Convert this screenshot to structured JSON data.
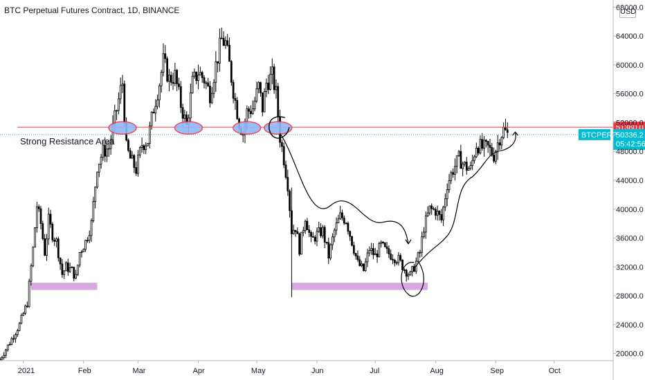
{
  "header": {
    "title": "BTC Perpetual Futures Contract, 1D, BINANCE",
    "currency": "USD"
  },
  "chart_data": {
    "type": "candlestick",
    "yticks": [
      20000,
      24000,
      28000,
      32000,
      36000,
      40000,
      44000,
      48000,
      52000,
      56000,
      60000,
      64000,
      68000
    ],
    "ytick_labels": [
      "20000.0",
      "24000.0",
      "28000.0",
      "32000.0",
      "36000.0",
      "40000.0",
      "44000.0",
      "48000.0",
      "52000.0",
      "56000.0",
      "60000.0",
      "64000.0",
      "68000.0"
    ],
    "ylim": [
      19000,
      69000
    ],
    "xticks": [
      "2021",
      "Feb",
      "Mar",
      "Apr",
      "May",
      "Jun",
      "Jul",
      "Aug",
      "Sep",
      "Oct"
    ],
    "xtick_dates": [
      "2021-01-01",
      "2021-02-01",
      "2021-03-01",
      "2021-04-01",
      "2021-05-01",
      "2021-06-01",
      "2021-07-01",
      "2021-08-01",
      "2021-09-01",
      "2021-10-01"
    ],
    "xlim": [
      "2020-12-20",
      "2021-10-31"
    ],
    "last_date": "2021-09-07",
    "colors": {
      "up": "#26a69a",
      "down": "#ef5350",
      "candle": "#000000",
      "resistance": "#f23645",
      "support_zone": "#ce93d8",
      "price_line": "#00bcd4",
      "oval_fill": "#90b8f8"
    },
    "resistance_level": 51360,
    "resistance_label": "51360.0",
    "current_price_label": "50336.2",
    "current_price": 50336.2,
    "symbol_label": "BTCPERP",
    "countdown_label": "05:42:56",
    "annotation_text": "Strong Resistance Area",
    "support_zones": [
      {
        "from": "2021-01-05",
        "to": "2021-02-08",
        "low": 28800,
        "high": 29800
      },
      {
        "from": "2021-05-19",
        "to": "2021-07-28",
        "low": 28800,
        "high": 29800
      }
    ],
    "ovals": [
      "2021-02-21",
      "2021-03-27",
      "2021-04-26",
      "2021-05-12"
    ],
    "series_close": [
      [
        "2020-12-20",
        19200
      ],
      [
        "2020-12-25",
        21500
      ],
      [
        "2020-12-30",
        24000
      ],
      [
        "2021-01-03",
        27000
      ],
      [
        "2021-01-06",
        34500
      ],
      [
        "2021-01-08",
        40500
      ],
      [
        "2021-01-10",
        38000
      ],
      [
        "2021-01-12",
        34000
      ],
      [
        "2021-01-14",
        38500
      ],
      [
        "2021-01-16",
        36500
      ],
      [
        "2021-01-18",
        35500
      ],
      [
        "2021-01-21",
        31000
      ],
      [
        "2021-01-23",
        32000
      ],
      [
        "2021-01-26",
        31500
      ],
      [
        "2021-01-28",
        30500
      ],
      [
        "2021-01-30",
        34000
      ],
      [
        "2021-02-02",
        35500
      ],
      [
        "2021-02-05",
        38000
      ],
      [
        "2021-02-08",
        46000
      ],
      [
        "2021-02-11",
        48000
      ],
      [
        "2021-02-14",
        48500
      ],
      [
        "2021-02-17",
        52500
      ],
      [
        "2021-02-20",
        56500
      ],
      [
        "2021-02-21",
        57500
      ],
      [
        "2021-02-23",
        48500
      ],
      [
        "2021-02-25",
        47000
      ],
      [
        "2021-02-28",
        45500
      ],
      [
        "2021-03-03",
        49000
      ],
      [
        "2021-03-06",
        49500
      ],
      [
        "2021-03-09",
        54000
      ],
      [
        "2021-03-12",
        57500
      ],
      [
        "2021-03-14",
        60500
      ],
      [
        "2021-03-17",
        58000
      ],
      [
        "2021-03-20",
        58500
      ],
      [
        "2021-03-23",
        54500
      ],
      [
        "2021-03-26",
        51500
      ],
      [
        "2021-03-29",
        57500
      ],
      [
        "2021-04-01",
        59000
      ],
      [
        "2021-04-04",
        58000
      ],
      [
        "2021-04-07",
        56000
      ],
      [
        "2021-04-10",
        60000
      ],
      [
        "2021-04-13",
        63500
      ],
      [
        "2021-04-15",
        63000
      ],
      [
        "2021-04-17",
        60000
      ],
      [
        "2021-04-19",
        56500
      ],
      [
        "2021-04-22",
        52000
      ],
      [
        "2021-04-24",
        50500
      ],
      [
        "2021-04-26",
        53500
      ],
      [
        "2021-04-29",
        54000
      ],
      [
        "2021-05-02",
        57000
      ],
      [
        "2021-05-04",
        54000
      ],
      [
        "2021-05-06",
        57500
      ],
      [
        "2021-05-09",
        58500
      ],
      [
        "2021-05-11",
        56000
      ],
      [
        "2021-05-13",
        50000
      ],
      [
        "2021-05-15",
        47000
      ],
      [
        "2021-05-17",
        43500
      ],
      [
        "2021-05-19",
        37000
      ],
      [
        "2021-05-21",
        37500
      ],
      [
        "2021-05-23",
        34500
      ],
      [
        "2021-05-26",
        39000
      ],
      [
        "2021-05-29",
        35500
      ],
      [
        "2021-06-01",
        36500
      ],
      [
        "2021-06-04",
        37000
      ],
      [
        "2021-06-07",
        33500
      ],
      [
        "2021-06-10",
        37000
      ],
      [
        "2021-06-13",
        39000
      ],
      [
        "2021-06-16",
        38500
      ],
      [
        "2021-06-19",
        35500
      ],
      [
        "2021-06-22",
        32500
      ],
      [
        "2021-06-25",
        31500
      ],
      [
        "2021-06-28",
        34500
      ],
      [
        "2021-07-01",
        33500
      ],
      [
        "2021-07-04",
        35000
      ],
      [
        "2021-07-07",
        34000
      ],
      [
        "2021-07-10",
        33500
      ],
      [
        "2021-07-13",
        33000
      ],
      [
        "2021-07-16",
        31700
      ],
      [
        "2021-07-19",
        30800
      ],
      [
        "2021-07-21",
        32000
      ],
      [
        "2021-07-24",
        34000
      ],
      [
        "2021-07-26",
        37500
      ],
      [
        "2021-07-29",
        40000
      ],
      [
        "2021-08-01",
        39800
      ],
      [
        "2021-08-04",
        38500
      ],
      [
        "2021-08-07",
        43500
      ],
      [
        "2021-08-10",
        45500
      ],
      [
        "2021-08-13",
        47000
      ],
      [
        "2021-08-16",
        46000
      ],
      [
        "2021-08-19",
        45500
      ],
      [
        "2021-08-22",
        49000
      ],
      [
        "2021-08-25",
        48500
      ],
      [
        "2021-08-28",
        48500
      ],
      [
        "2021-08-31",
        47500
      ],
      [
        "2021-09-03",
        50000
      ],
      [
        "2021-09-05",
        51000
      ],
      [
        "2021-09-07",
        50336
      ]
    ]
  }
}
